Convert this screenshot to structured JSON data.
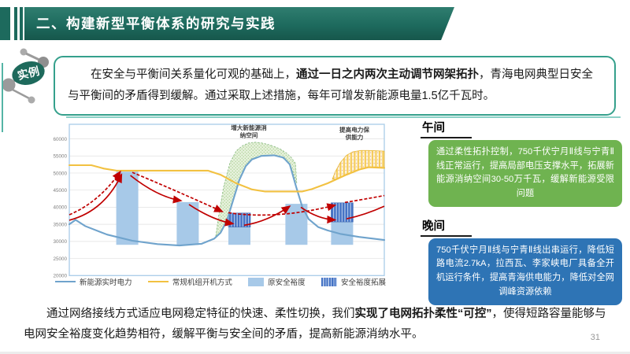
{
  "header": {
    "title": "二、构建新型平衡体系的研究与实践"
  },
  "example_badge": {
    "label": "实例"
  },
  "intro": {
    "segments": [
      {
        "t": "在安全与平衡间关系量化可观的基础上，",
        "b": false
      },
      {
        "t": "通过一日之内两次主动调节网架拓扑",
        "b": true
      },
      {
        "t": "，青海电网典型日安全与平衡间的矛盾得到缓解。通过采取上述措施，每年可增发新能源电量1.5亿千瓦时。",
        "b": false
      }
    ]
  },
  "chart_data": {
    "type": "line",
    "title": "",
    "xlabel": "",
    "ylabel": "",
    "ylim": [
      20000,
      60000
    ],
    "grid": true,
    "yticks": [
      "60000",
      "55000",
      "50000",
      "45000",
      "40000",
      "35000",
      "30000",
      "25000",
      "20000"
    ],
    "series": [
      {
        "name": "新能源实时电力",
        "kind": "line",
        "color": "#6FA3CC",
        "points": [
          [
            0,
            35000
          ],
          [
            2,
            36300
          ],
          [
            5,
            34500
          ],
          [
            12,
            32000
          ],
          [
            20,
            30200
          ],
          [
            28,
            29200
          ],
          [
            35,
            28800
          ],
          [
            42,
            29300
          ],
          [
            46,
            30800
          ],
          [
            48,
            32500
          ],
          [
            50,
            36000
          ],
          [
            52,
            42000
          ],
          [
            54,
            48000
          ],
          [
            56,
            52000
          ],
          [
            58,
            54000
          ],
          [
            61,
            55000
          ],
          [
            65,
            55200
          ],
          [
            68,
            54500
          ],
          [
            70,
            52500
          ],
          [
            72,
            46000
          ],
          [
            74,
            40000
          ],
          [
            76,
            36500
          ],
          [
            79,
            34200
          ],
          [
            82,
            33200
          ],
          [
            86,
            32200
          ],
          [
            92,
            31300
          ],
          [
            100,
            30400
          ]
        ]
      },
      {
        "name": "常规机组开机方式",
        "kind": "line",
        "color": "#F2C141",
        "points": [
          [
            0,
            52300
          ],
          [
            7,
            52300
          ],
          [
            11,
            51300
          ],
          [
            15,
            50700
          ],
          [
            44,
            50700
          ],
          [
            48,
            49500
          ],
          [
            53,
            47000
          ],
          [
            58,
            45200
          ],
          [
            62,
            44600
          ],
          [
            74,
            44600
          ],
          [
            77,
            45300
          ],
          [
            82,
            47000
          ],
          [
            88,
            49500
          ],
          [
            92,
            51000
          ],
          [
            95,
            51700
          ],
          [
            100,
            51500
          ]
        ]
      },
      {
        "name": "原安全裕度",
        "kind": "bar",
        "color": "#A7C9E8",
        "bars": [
          [
            14.9,
            21.9,
            29000,
            50400
          ],
          [
            34.1,
            41.1,
            29000,
            41500
          ],
          [
            50.5,
            57.5,
            29000,
            34200
          ],
          [
            68.6,
            75.6,
            29000,
            41000
          ],
          [
            83.1,
            90.1,
            29000,
            35700
          ]
        ]
      },
      {
        "name": "安全裕度拓展",
        "kind": "hatch-bar",
        "color": "#4472C4",
        "bars": [
          [
            50.5,
            57.5,
            34200,
            38300
          ],
          [
            83.1,
            90.1,
            35700,
            41300
          ]
        ]
      }
    ],
    "areas": {
      "dome": {
        "pattern": "pat-dome",
        "stroke": "#86B97E",
        "dash": "2.4,1.8",
        "points": [
          [
            46.5,
            31500
          ],
          [
            47.5,
            38000
          ],
          [
            49,
            46000
          ],
          [
            51,
            53000
          ],
          [
            53,
            56500
          ],
          [
            55,
            58000
          ],
          [
            57,
            58800
          ],
          [
            59,
            59000
          ],
          [
            61,
            58800
          ],
          [
            63,
            58400
          ],
          [
            65,
            57800
          ],
          [
            67,
            57000
          ],
          [
            69,
            55800
          ],
          [
            70.5,
            54500
          ],
          [
            71.8,
            52800
          ],
          [
            72.2,
            47000
          ],
          [
            71,
            50500
          ],
          [
            69.5,
            53300
          ],
          [
            67,
            54800
          ],
          [
            64,
            55200
          ],
          [
            61,
            55100
          ],
          [
            58,
            54200
          ],
          [
            56,
            52200
          ],
          [
            54,
            48200
          ],
          [
            52,
            42200
          ],
          [
            50,
            36200
          ],
          [
            48,
            32700
          ]
        ]
      },
      "yellow": {
        "pattern": "pat-yellow",
        "stroke": "#E8B73C",
        "dash": "",
        "points": [
          [
            83.5,
            48200
          ],
          [
            84.5,
            50500
          ],
          [
            86,
            53000
          ],
          [
            88,
            55200
          ],
          [
            90,
            56200
          ],
          [
            92.5,
            56600
          ],
          [
            95,
            56600
          ],
          [
            97.5,
            56500
          ],
          [
            100,
            56400
          ],
          [
            100,
            51500
          ],
          [
            95,
            51700
          ],
          [
            92,
            51000
          ],
          [
            88,
            49500
          ],
          [
            85,
            48300
          ]
        ]
      }
    },
    "annotations": [
      {
        "lines": [
          "增大新能源消",
          "纳空间"
        ],
        "u": 57,
        "v": 62600
      },
      {
        "lines": [
          "提高电力保",
          "供能力"
        ],
        "u": 90.5,
        "v": 62100
      }
    ],
    "arrows": {
      "color": "#C00000",
      "solid": [
        [
          [
            0,
            36200
          ],
          [
            11,
            38800
          ],
          [
            16.6,
            49600
          ],
          1
        ],
        [
          [
            19.4,
            49300
          ],
          [
            28,
            43000
          ],
          [
            35.5,
            41900
          ],
          1
        ],
        [
          [
            38,
            40800
          ],
          [
            45.5,
            36200
          ],
          [
            52,
            35200
          ],
          1
        ],
        [
          [
            55.5,
            34700
          ],
          [
            63,
            35800
          ],
          [
            70,
            40300
          ],
          1
        ],
        [
          [
            73.5,
            40000
          ],
          [
            79,
            36500
          ],
          [
            84.4,
            36300
          ],
          1
        ],
        [
          [
            88,
            36600
          ],
          [
            94,
            37800
          ],
          [
            100,
            40300
          ],
          0
        ]
      ],
      "dashed": [
        [
          [
            0,
            37800
          ],
          [
            9.5,
            41500
          ],
          [
            16.2,
            50400
          ],
          1
        ],
        [
          [
            20,
            50200
          ],
          [
            33,
            45200
          ],
          [
            48.6,
            38700
          ],
          1
        ],
        [
          [
            50.5,
            38400
          ],
          [
            66,
            36300
          ],
          [
            84.4,
            40600
          ],
          1
        ],
        [
          [
            87.5,
            41400
          ],
          [
            93.5,
            42300
          ],
          [
            100,
            43400
          ],
          0
        ]
      ]
    }
  },
  "legend": [
    {
      "label": "新能源实时电力",
      "swatch": "line",
      "color": "#6FA3CC"
    },
    {
      "label": "常规机组开机方式",
      "swatch": "line",
      "color": "#F2C141"
    },
    {
      "label": "原安全裕度",
      "swatch": "rect",
      "color": "#A7C9E8"
    },
    {
      "label": "安全裕度拓展",
      "swatch": "hatch",
      "color": "#4472C4"
    }
  ],
  "panels": [
    {
      "title": "午间",
      "color": "#6FB350",
      "text": "通过柔性拓扑控制，750千伏宁月Ⅱ线与宁青Ⅱ线正常运行，提高局部电压支撑水平，拓展新能源消纳空间30-50万千瓦，缓解新能源受限问题"
    },
    {
      "title": "晚间",
      "color": "#2E74B5",
      "text": "750千伏宁月Ⅱ线与宁青Ⅱ线出串运行，降低短路电流2.7kA，拉西瓦、李家峡电厂具备全开机运行条件，提高青海供电能力，降低对全网调峰资源依赖"
    }
  ],
  "conclusion": {
    "segments": [
      {
        "t": "通过网络接线方式适应电网稳定特征的快速、柔性切换，我们",
        "b": false
      },
      {
        "t": "实现了电网拓扑柔性“可控”",
        "b": true
      },
      {
        "t": "，使得短路容量能够与电网安全裕度变化趋势相符，缓解平衡与安全间的矛盾，提高新能源消纳水平。",
        "b": false
      }
    ]
  },
  "page": {
    "number": "31"
  }
}
